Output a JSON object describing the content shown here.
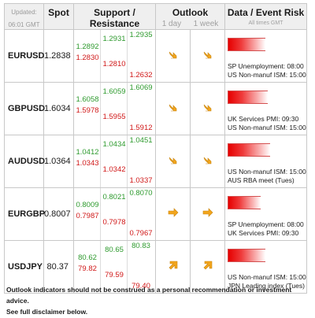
{
  "header": {
    "updated_label": "Updated:",
    "updated_time": "06:01 GMT",
    "spot": "Spot",
    "support_resistance": "Support / Resistance",
    "outlook": "Outlook",
    "outlook_1day": "1 day",
    "outlook_1week": "1 week",
    "data_event_risk": "Data / Event Risk",
    "all_times": "All times GMT"
  },
  "colors": {
    "support": "#2e9a2e",
    "resistance": "#d01818",
    "arrow": "#f2a51d",
    "risk": "#e60000"
  },
  "rows": [
    {
      "pair": "EURUSD",
      "spot": "1.2838",
      "sr": {
        "s1": "1.2892",
        "r1": "1.2830",
        "s2": "1.2931",
        "r2": "1.2810",
        "s3": "1.2935",
        "r3": "1.2632"
      },
      "outlook_day": "arrow-down-right-icon",
      "outlook_week": "arrow-down-right-icon",
      "risk_level": 0.8,
      "events": [
        "SP Unemployment: 08:00",
        "US Non-manuf ISM: 15:00"
      ]
    },
    {
      "pair": "GBPUSD",
      "spot": "1.6034",
      "sr": {
        "s1": "1.6058",
        "r1": "1.5978",
        "s2": "1.6059",
        "r2": "1.5955",
        "s3": "1.6069",
        "r3": "1.5912"
      },
      "outlook_day": "arrow-down-right-icon",
      "outlook_week": "arrow-down-right-icon",
      "risk_level": 0.85,
      "events": [
        "UK Services PMI: 09:30",
        "US Non-manuf ISM: 15:00"
      ]
    },
    {
      "pair": "AUDUSD",
      "spot": "1.0364",
      "sr": {
        "s1": "1.0412",
        "r1": "1.0343",
        "s2": "1.0434",
        "r2": "1.0342",
        "s3": "1.0451",
        "r3": "1.0337"
      },
      "outlook_day": "arrow-down-right-icon",
      "outlook_week": "arrow-down-right-icon",
      "risk_level": 0.9,
      "events": [
        "US Non-manuf ISM: 15:00",
        "AUS RBA meet (Tues)"
      ]
    },
    {
      "pair": "EURGBP",
      "spot": "0.8007",
      "sr": {
        "s1": "0.8009",
        "r1": "0.7987",
        "s2": "0.8021",
        "r2": "0.7978",
        "s3": "0.8070",
        "r3": "0.7967"
      },
      "outlook_day": "arrow-right-icon",
      "outlook_week": "arrow-right-icon",
      "risk_level": 0.7,
      "events": [
        "SP Unemployment: 08:00",
        "UK Services PMI: 09:30"
      ]
    },
    {
      "pair": "USDJPY",
      "spot": "80.37",
      "sr": {
        "s1": "80.62",
        "r1": "79.82",
        "s2": "80.65",
        "r2": "79.59",
        "s3": "80.83",
        "r3": "79.40"
      },
      "outlook_day": "arrow-up-right-icon",
      "outlook_week": "arrow-up-right-icon",
      "risk_level": 0.8,
      "events": [
        "US Non-manuf ISM: 15:00",
        "JPN Leading index (Tues)"
      ]
    }
  ],
  "footer": {
    "line1": "Outlook indicators should not be construed as a personal recommendation or investment advice.",
    "line2": "See full disclaimer below."
  }
}
